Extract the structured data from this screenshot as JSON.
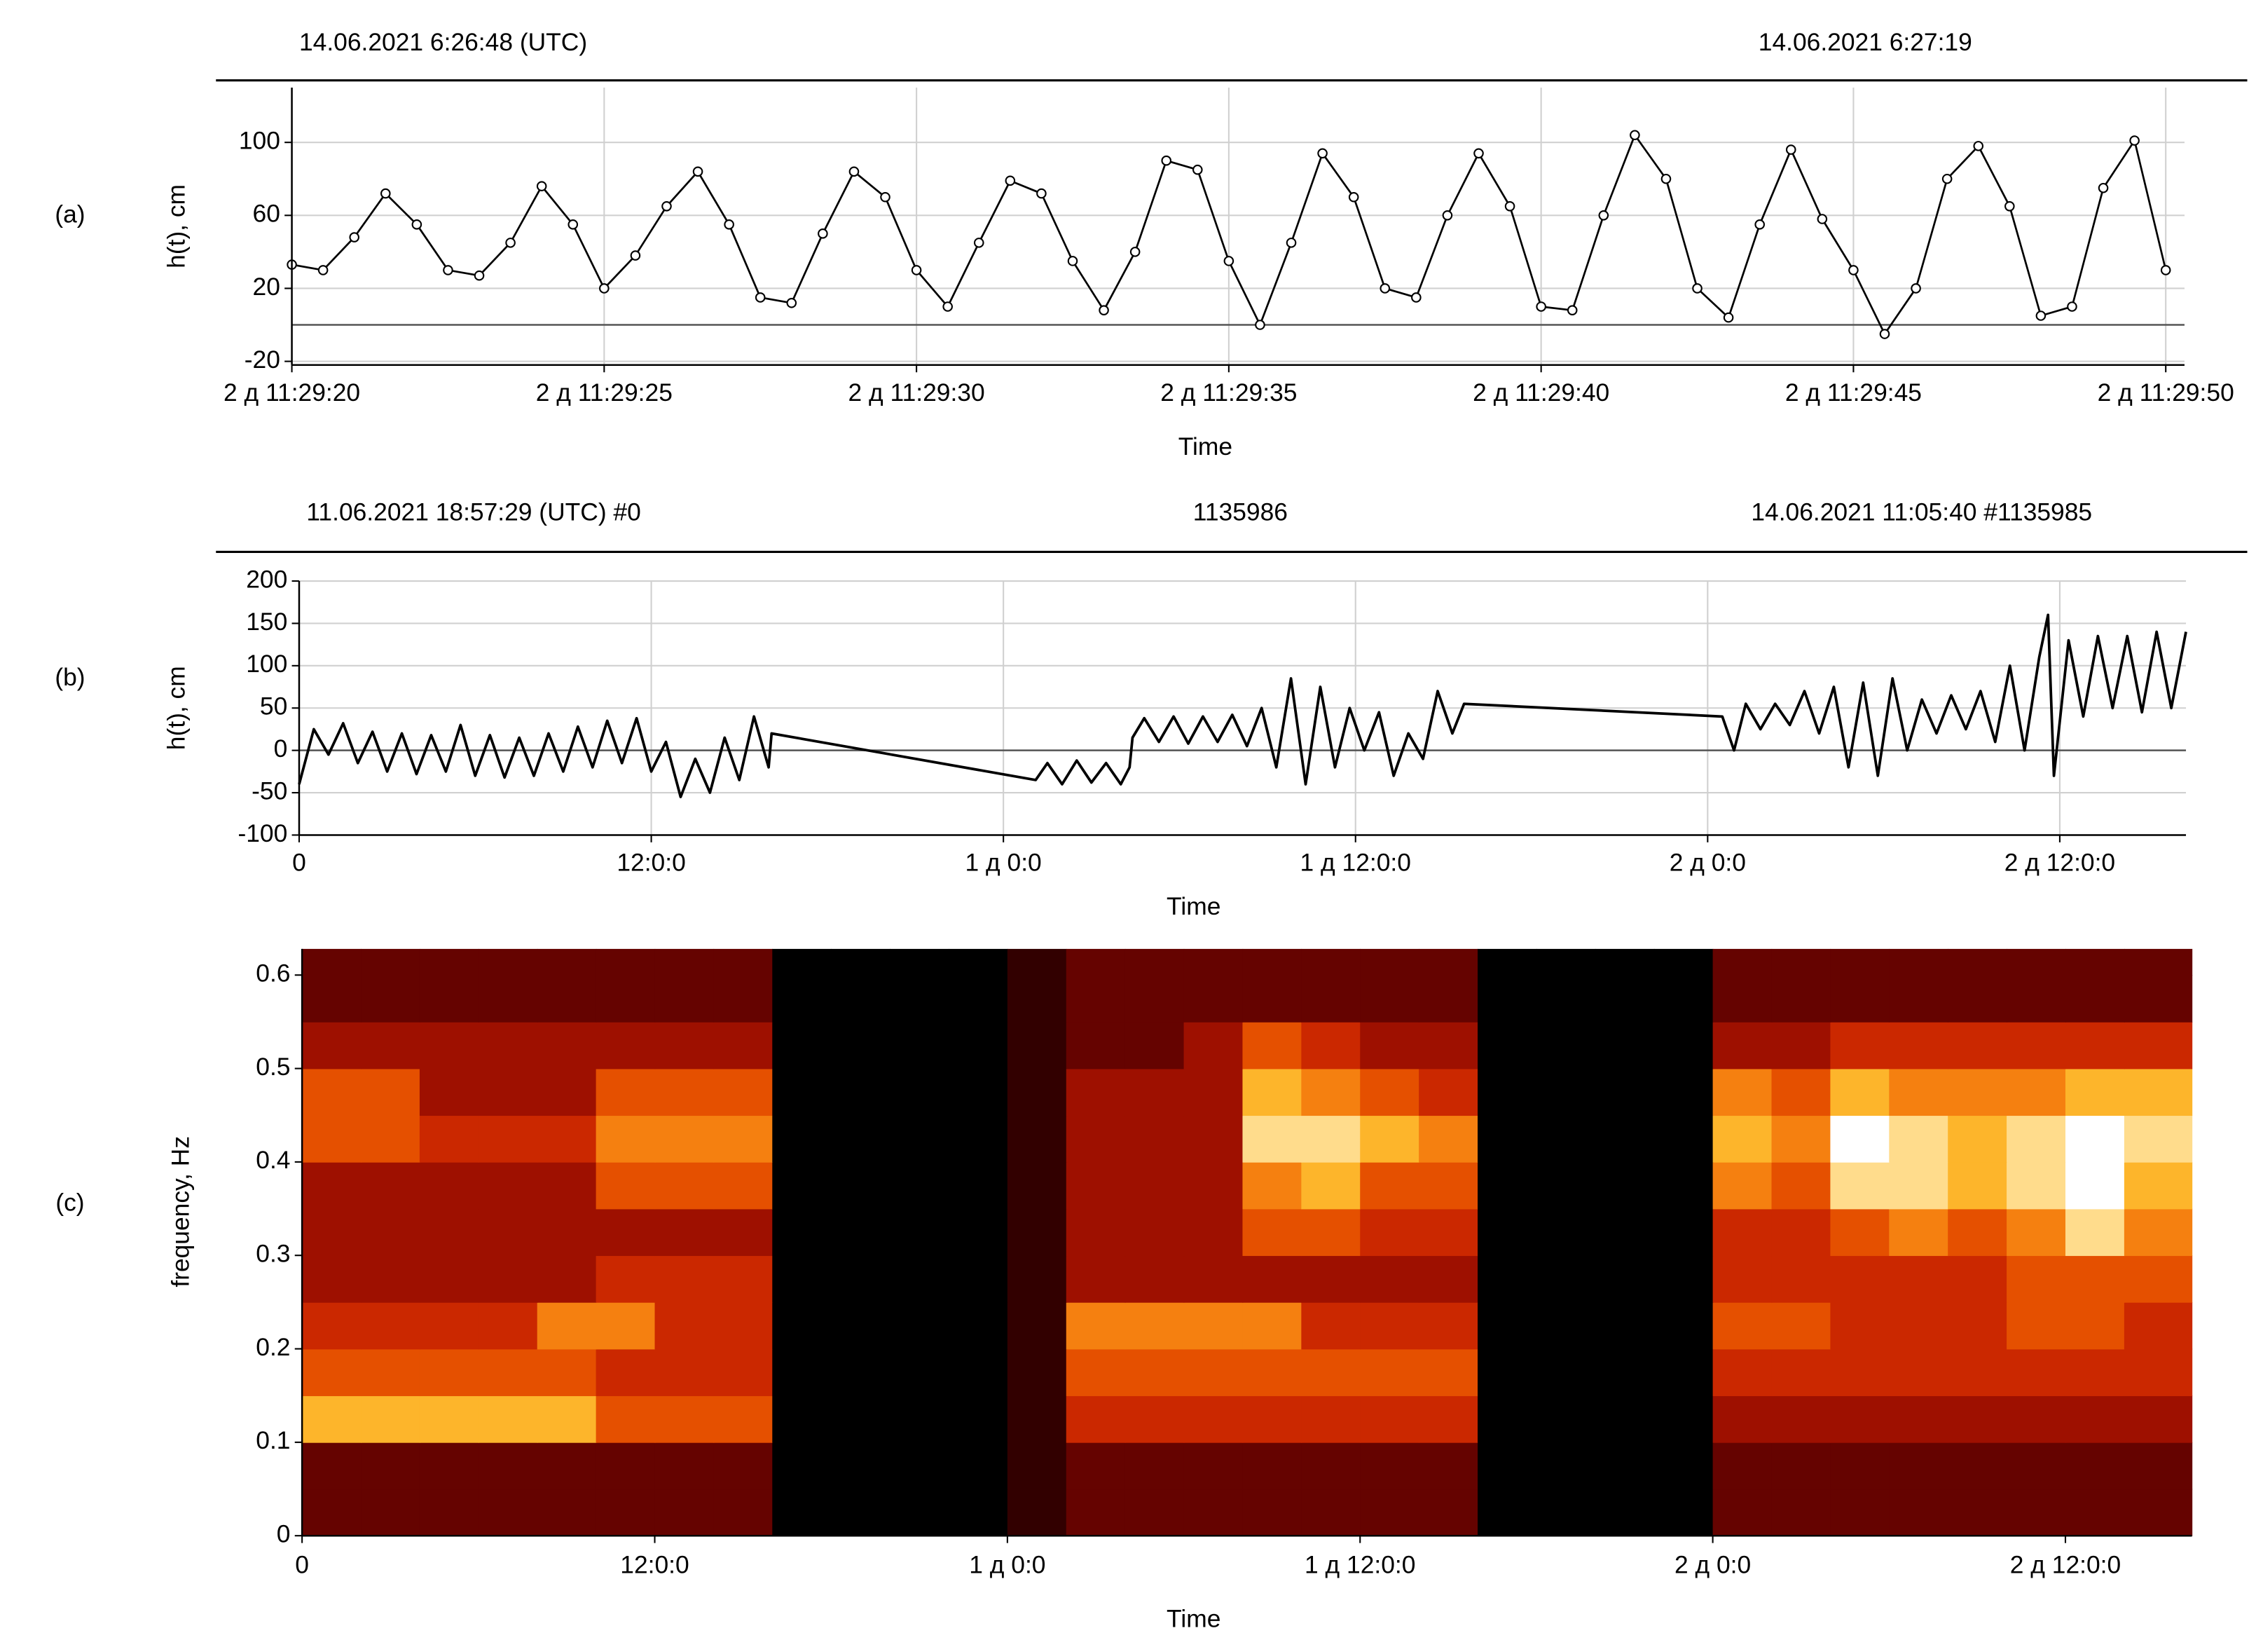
{
  "chart_data": [
    {
      "type": "line",
      "panel_label": "(a)",
      "header_left": "14.06.2021 6:26:48 (UTC)",
      "header_right": "14.06.2021 6:27:19",
      "xlabel": "Time",
      "ylabel": "h(t), cm",
      "x": [
        214160,
        214160.5,
        214161,
        214161.5,
        214162,
        214162.5,
        214163,
        214163.5,
        214164,
        214164.5,
        214165,
        214165.5,
        214166,
        214166.5,
        214167,
        214167.5,
        214168,
        214168.5,
        214169,
        214169.5,
        214170,
        214170.5,
        214171,
        214171.5,
        214172,
        214172.5,
        214173,
        214173.5,
        214174,
        214174.5,
        214175,
        214175.5,
        214176,
        214176.5,
        214177,
        214177.5,
        214178,
        214178.5,
        214179,
        214179.5,
        214180,
        214180.5,
        214181,
        214181.5,
        214182,
        214182.5,
        214183,
        214183.5,
        214184,
        214184.5,
        214185,
        214185.5,
        214186,
        214186.5,
        214187,
        214187.5,
        214188,
        214188.5,
        214189,
        214189.5,
        214190
      ],
      "values": [
        33,
        30,
        48,
        72,
        55,
        30,
        27,
        45,
        76,
        55,
        20,
        38,
        65,
        84,
        55,
        15,
        12,
        50,
        84,
        70,
        30,
        10,
        45,
        79,
        72,
        35,
        8,
        40,
        90,
        85,
        35,
        0,
        45,
        94,
        70,
        20,
        15,
        60,
        94,
        65,
        10,
        8,
        60,
        104,
        80,
        20,
        4,
        55,
        96,
        58,
        30,
        -5,
        20,
        80,
        98,
        65,
        5,
        10,
        75,
        101,
        30
      ],
      "color": "#000000",
      "markers": true,
      "xlim": [
        214160,
        214190.3
      ],
      "ylim": [
        -22,
        130
      ],
      "xticks": [
        {
          "value": 214160,
          "label": "2 д 11:29:20"
        },
        {
          "value": 214165,
          "label": "2 д 11:29:25"
        },
        {
          "value": 214170,
          "label": "2 д 11:29:30"
        },
        {
          "value": 214175,
          "label": "2 д 11:29:35"
        },
        {
          "value": 214180,
          "label": "2 д 11:29:40"
        },
        {
          "value": 214185,
          "label": "2 д 11:29:45"
        },
        {
          "value": 214190,
          "label": "2 д 11:29:50"
        }
      ],
      "yticks": [
        -20,
        20,
        60,
        100
      ],
      "grid": true
    },
    {
      "type": "line",
      "panel_label": "(b)",
      "header_left": "11.06.2021 18:57:29 (UTC)  #0",
      "header_center": "1135986",
      "header_right": "14.06.2021 11:05:40  #1135985",
      "xlabel": "Time",
      "ylabel": "h(t), cm",
      "x": [
        0,
        0.5,
        1,
        1.5,
        2,
        2.5,
        3,
        3.5,
        4,
        4.5,
        5,
        5.5,
        6,
        6.5,
        7,
        7.5,
        8,
        8.5,
        9,
        9.5,
        10,
        10.5,
        11,
        11.5,
        12,
        12.5,
        13,
        13.5,
        14,
        14.5,
        15,
        15.5,
        16,
        16.1,
        25.1,
        25.5,
        26,
        26.5,
        27,
        27.5,
        28,
        28.3,
        28.4,
        28.8,
        29.3,
        29.8,
        30.3,
        30.8,
        31.3,
        31.8,
        32.3,
        32.8,
        33.3,
        33.8,
        34.3,
        34.8,
        35.3,
        35.8,
        36.3,
        36.8,
        37.3,
        37.8,
        38.3,
        38.8,
        39.3,
        39.7,
        48.5,
        48.9,
        49.3,
        49.8,
        50.3,
        50.8,
        51.3,
        51.8,
        52.3,
        52.8,
        53.3,
        53.8,
        54.3,
        54.8,
        55.3,
        55.8,
        56.3,
        56.8,
        57.3,
        57.8,
        58.3,
        58.8,
        59.3,
        59.6,
        59.8,
        60.3,
        60.8,
        61.3,
        61.8,
        62.3,
        62.8,
        63.3,
        63.8,
        64.3
      ],
      "values": [
        -40,
        25,
        -5,
        32,
        -15,
        22,
        -25,
        20,
        -28,
        18,
        -25,
        30,
        -30,
        18,
        -32,
        15,
        -30,
        20,
        -25,
        28,
        -20,
        35,
        -15,
        38,
        -25,
        10,
        -55,
        -10,
        -50,
        15,
        -35,
        40,
        -20,
        20,
        -35,
        -15,
        -40,
        -12,
        -38,
        -15,
        -40,
        -20,
        15,
        38,
        10,
        40,
        8,
        40,
        10,
        42,
        5,
        50,
        -20,
        85,
        -40,
        75,
        -20,
        50,
        0,
        45,
        -30,
        20,
        -10,
        70,
        20,
        55,
        40,
        0,
        55,
        25,
        55,
        30,
        70,
        20,
        75,
        -20,
        80,
        -30,
        85,
        0,
        60,
        20,
        65,
        25,
        70,
        10,
        100,
        0,
        110,
        160,
        -30,
        130,
        40,
        135,
        50,
        135,
        45,
        140,
        50,
        140
      ],
      "color": "#000000",
      "markers": false,
      "xlim": [
        0,
        64.3
      ],
      "ylim": [
        -100,
        200
      ],
      "xticks": [
        0,
        {
          "value": 12,
          "label": "12:0:0"
        },
        {
          "value": 24,
          "label": "1 д 0:0"
        },
        {
          "value": 36,
          "label": "1 д 12:0:0"
        },
        {
          "value": 48,
          "label": "2 д 0:0"
        },
        {
          "value": 60,
          "label": "2 д 12:0:0"
        }
      ],
      "yticks": [
        -100,
        -50,
        0,
        50,
        100,
        150,
        200
      ],
      "grid": true
    },
    {
      "type": "heatmap",
      "panel_label": "(c)",
      "xlabel": "Time",
      "ylabel": "frequency, Hz",
      "xbins": [
        0,
        2,
        4,
        6,
        8,
        10,
        12,
        14,
        16,
        18,
        20,
        22,
        24,
        26,
        28,
        30,
        32,
        34,
        36,
        38,
        40,
        42,
        44,
        46,
        48,
        50,
        52,
        54,
        56,
        58,
        60,
        62,
        64.3
      ],
      "ybins": [
        0,
        0.05,
        0.1,
        0.15,
        0.2,
        0.25,
        0.3,
        0.35,
        0.4,
        0.45,
        0.5,
        0.55,
        0.6,
        0.628
      ],
      "z": [
        [
          2,
          2,
          2,
          2,
          2,
          2,
          2,
          2,
          0,
          0,
          0,
          0,
          1,
          2,
          2,
          2,
          2,
          2,
          2,
          2,
          0,
          0,
          0,
          0,
          2,
          2,
          2,
          2,
          2,
          2,
          2,
          2
        ],
        [
          2,
          2,
          2,
          2,
          2,
          2,
          2,
          2,
          0,
          0,
          0,
          0,
          1,
          2,
          2,
          2,
          2,
          2,
          2,
          2,
          0,
          0,
          0,
          0,
          2,
          2,
          2,
          2,
          2,
          2,
          2,
          2
        ],
        [
          7,
          7,
          7,
          7,
          7,
          5,
          5,
          5,
          0,
          0,
          0,
          0,
          1,
          4,
          4,
          4,
          4,
          4,
          4,
          4,
          0,
          0,
          0,
          0,
          3,
          3,
          3,
          3,
          3,
          3,
          3,
          3
        ],
        [
          5,
          5,
          5,
          5,
          5,
          4,
          4,
          4,
          0,
          0,
          0,
          0,
          1,
          5,
          5,
          5,
          5,
          5,
          5,
          5,
          0,
          0,
          0,
          0,
          4,
          4,
          4,
          4,
          4,
          4,
          4,
          4
        ],
        [
          4,
          4,
          4,
          4,
          6,
          6,
          4,
          4,
          0,
          0,
          0,
          0,
          1,
          6,
          6,
          6,
          6,
          4,
          4,
          4,
          0,
          0,
          0,
          0,
          5,
          5,
          4,
          4,
          4,
          5,
          5,
          4
        ],
        [
          3,
          3,
          3,
          3,
          3,
          4,
          4,
          4,
          0,
          0,
          0,
          0,
          1,
          3,
          3,
          3,
          3,
          3,
          3,
          3,
          0,
          0,
          0,
          0,
          4,
          4,
          4,
          4,
          4,
          5,
          5,
          5
        ],
        [
          3,
          3,
          3,
          3,
          3,
          3,
          3,
          3,
          0,
          0,
          0,
          0,
          1,
          3,
          3,
          3,
          5,
          5,
          4,
          4,
          0,
          0,
          0,
          0,
          4,
          4,
          5,
          6,
          5,
          6,
          8,
          6
        ],
        [
          3,
          3,
          3,
          3,
          3,
          5,
          5,
          5,
          0,
          0,
          0,
          0,
          1,
          3,
          3,
          3,
          6,
          7,
          5,
          5,
          0,
          0,
          0,
          0,
          6,
          5,
          8,
          8,
          7,
          8,
          9,
          7
        ],
        [
          5,
          5,
          4,
          4,
          4,
          6,
          6,
          6,
          0,
          0,
          0,
          0,
          1,
          3,
          3,
          3,
          8,
          8,
          7,
          6,
          0,
          0,
          0,
          0,
          7,
          6,
          9,
          8,
          7,
          8,
          9,
          8
        ],
        [
          5,
          5,
          3,
          3,
          3,
          5,
          5,
          5,
          0,
          0,
          0,
          0,
          1,
          3,
          3,
          3,
          7,
          6,
          5,
          4,
          0,
          0,
          0,
          0,
          6,
          5,
          7,
          6,
          6,
          6,
          7,
          7
        ],
        [
          3,
          3,
          3,
          3,
          3,
          3,
          3,
          3,
          0,
          0,
          0,
          0,
          1,
          2,
          2,
          3,
          5,
          4,
          3,
          3,
          0,
          0,
          0,
          0,
          3,
          3,
          4,
          4,
          4,
          4,
          4,
          4
        ],
        [
          2,
          2,
          2,
          2,
          2,
          2,
          2,
          2,
          0,
          0,
          0,
          0,
          1,
          2,
          2,
          2,
          2,
          2,
          2,
          2,
          0,
          0,
          0,
          0,
          2,
          2,
          2,
          2,
          2,
          2,
          2,
          2
        ],
        [
          2,
          2,
          2,
          2,
          2,
          2,
          2,
          2,
          0,
          0,
          0,
          0,
          1,
          2,
          2,
          2,
          2,
          2,
          2,
          2,
          0,
          0,
          0,
          0,
          2,
          2,
          2,
          2,
          2,
          2,
          2,
          2
        ]
      ],
      "zlim": [
        0,
        9
      ],
      "colors": [
        "#000000",
        "#5a0000",
        "#c01800",
        "#f06000",
        "#ffc030",
        "#ffffff"
      ],
      "xlim": [
        0,
        64.3
      ],
      "ylim": [
        0,
        0.628
      ],
      "xticks": [
        0,
        {
          "value": 12,
          "label": "12:0:0"
        },
        {
          "value": 24,
          "label": "1 д 0:0"
        },
        {
          "value": 36,
          "label": "1 д 12:0:0"
        },
        {
          "value": 48,
          "label": "2 д 0:0"
        },
        {
          "value": 60,
          "label": "2 д 12:0:0"
        }
      ],
      "yticks": [
        0,
        0.1,
        0.2,
        0.3,
        0.4,
        0.5,
        0.6
      ],
      "grid": false
    }
  ]
}
